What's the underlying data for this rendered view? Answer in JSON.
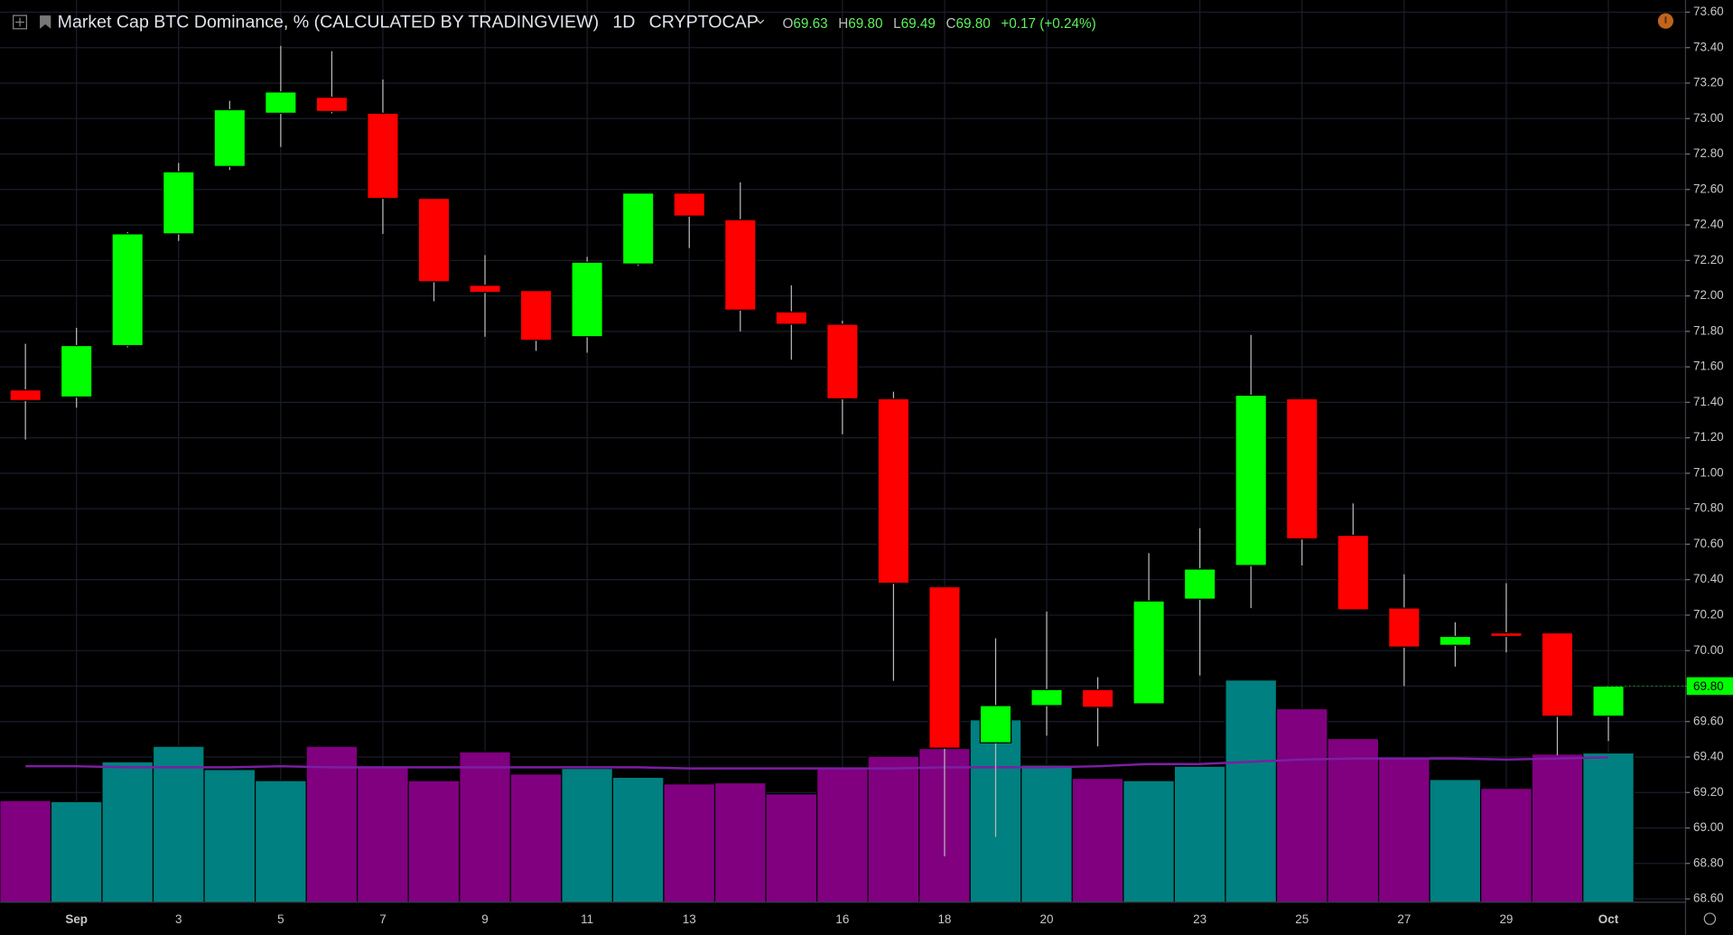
{
  "chart_data": {
    "type": "candlestick",
    "title": "Market Cap BTC Dominance, % (CALCULATED BY TRADINGVIEW)",
    "interval": "1D",
    "exchange": "CRYPTOCAP",
    "legend": {
      "o_label": "O",
      "o": "69.63",
      "h_label": "H",
      "h": "69.80",
      "l_label": "L",
      "l": "69.49",
      "c_label": "C",
      "c": "69.80",
      "change": "+0.17 (+0.24%)"
    },
    "last_label": "69.80",
    "categories": [
      null,
      "Sep",
      null,
      "3",
      null,
      "5",
      null,
      "7",
      null,
      "9",
      null,
      "11",
      null,
      "13",
      null,
      null,
      "16",
      null,
      "18",
      null,
      "20",
      null,
      null,
      "23",
      null,
      "25",
      null,
      "27",
      null,
      "29",
      null,
      "Oct"
    ],
    "open": [
      71.47,
      71.43,
      71.72,
      72.35,
      72.73,
      73.03,
      73.12,
      73.03,
      72.55,
      72.06,
      72.03,
      71.77,
      72.18,
      72.58,
      72.43,
      71.91,
      71.84,
      71.42,
      70.36,
      69.48,
      69.69,
      69.78,
      69.7,
      70.29,
      70.48,
      71.42,
      70.65,
      70.24,
      70.03,
      70.1,
      70.1,
      69.63
    ],
    "high": [
      71.73,
      71.82,
      72.36,
      72.75,
      73.1,
      73.41,
      73.38,
      73.22,
      72.55,
      72.23,
      72.03,
      72.22,
      72.58,
      72.58,
      72.64,
      72.06,
      71.86,
      71.46,
      70.36,
      70.07,
      70.22,
      69.85,
      70.55,
      70.69,
      71.78,
      71.42,
      70.83,
      70.43,
      70.16,
      70.38,
      70.1,
      69.8
    ],
    "low": [
      71.19,
      71.37,
      71.71,
      72.31,
      72.71,
      72.84,
      73.03,
      72.35,
      71.97,
      71.77,
      71.69,
      71.68,
      72.17,
      72.27,
      71.8,
      71.64,
      71.22,
      69.83,
      68.84,
      68.95,
      69.52,
      69.46,
      69.7,
      69.86,
      70.24,
      70.48,
      70.23,
      69.8,
      69.91,
      69.99,
      69.41,
      69.49
    ],
    "close": [
      71.41,
      71.72,
      72.35,
      72.7,
      73.05,
      73.15,
      73.04,
      72.55,
      72.08,
      72.02,
      71.75,
      72.19,
      72.58,
      72.45,
      71.92,
      71.84,
      71.42,
      70.38,
      69.45,
      69.69,
      69.78,
      69.68,
      70.28,
      70.46,
      71.44,
      70.63,
      70.23,
      70.02,
      70.08,
      70.08,
      69.63,
      69.8
    ],
    "up_color": "#00ff00",
    "down_color": "#ff0000",
    "volume": [
      92,
      91,
      127,
      141,
      120,
      110,
      141,
      122,
      110,
      136,
      116,
      121,
      113,
      107,
      108,
      98,
      121,
      132,
      139,
      165,
      124,
      112,
      110,
      123,
      201,
      175,
      148,
      131,
      111,
      103,
      134,
      135
    ],
    "volume_ma": [
      123,
      123,
      122,
      122,
      122,
      123,
      122,
      122,
      122,
      122,
      122,
      122,
      122,
      121,
      121,
      121,
      121,
      121,
      122,
      122,
      122,
      123,
      125,
      125,
      127,
      129,
      130,
      130,
      130,
      129,
      130,
      131
    ],
    "volume_up_color": "#008080",
    "volume_down_color": "#800080",
    "volume_ma_color": "#7b1fa2",
    "volume_lim": [
      0,
      300
    ],
    "ylim": [
      68.6,
      73.6
    ],
    "yticks": [
      {
        "value": 68.6,
        "label": "68.60"
      },
      {
        "value": 68.8,
        "label": "68.80"
      },
      {
        "value": 69.0,
        "label": "69.00"
      },
      {
        "value": 69.2,
        "label": "69.20"
      },
      {
        "value": 69.4,
        "label": "69.40"
      },
      {
        "value": 69.6,
        "label": "69.60"
      },
      {
        "value": 69.8,
        "label": "69.80"
      },
      {
        "value": 70.0,
        "label": "70.00"
      },
      {
        "value": 70.2,
        "label": "70.20"
      },
      {
        "value": 70.4,
        "label": "70.40"
      },
      {
        "value": 70.6,
        "label": "70.60"
      },
      {
        "value": 70.8,
        "label": "70.80"
      },
      {
        "value": 71.0,
        "label": "71.00"
      },
      {
        "value": 71.2,
        "label": "71.20"
      },
      {
        "value": 71.4,
        "label": "71.40"
      },
      {
        "value": 71.6,
        "label": "71.60"
      },
      {
        "value": 71.8,
        "label": "71.80"
      },
      {
        "value": 72.0,
        "label": "72.00"
      },
      {
        "value": 72.2,
        "label": "72.20"
      },
      {
        "value": 72.4,
        "label": "72.40"
      },
      {
        "value": 72.6,
        "label": "72.60"
      },
      {
        "value": 72.8,
        "label": "72.80"
      },
      {
        "value": 73.0,
        "label": "73.00"
      },
      {
        "value": 73.2,
        "label": "73.20"
      },
      {
        "value": 73.4,
        "label": "73.40"
      },
      {
        "value": 73.6,
        "label": "73.60"
      }
    ],
    "grid": true
  }
}
